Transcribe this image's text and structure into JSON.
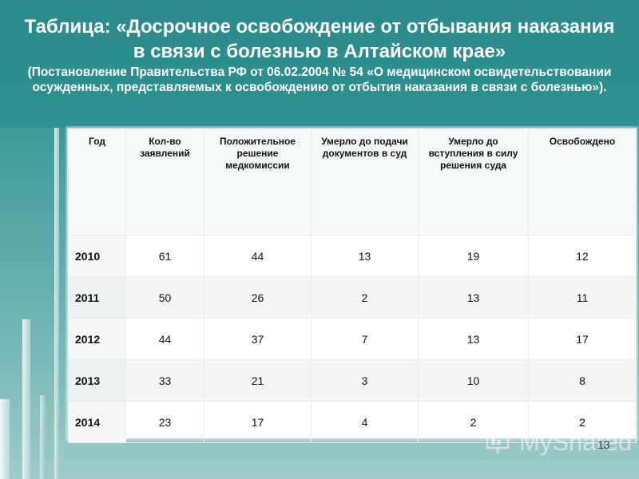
{
  "slide": {
    "title_main": "Таблица: «Досрочное освобождение от отбывания наказания в связи с болезнью в Алтайском крае»",
    "title_sub": "(Постановление Правительства РФ от 06.02.2004 № 54 «О медицинском освидетельствовании осужденных, представляемых к освобождению от отбытия наказания в связи с болезнью»).",
    "page_number": "13",
    "watermark": "MyShared"
  },
  "table": {
    "headers": [
      "Год",
      "Кол-во заявлений",
      "Положительное решение медкомиссии",
      "Умерло до подачи документов в суд",
      "Умерло до вступления в силу решения суда",
      "Освобождено"
    ],
    "rows": [
      [
        "2010",
        "61",
        "44",
        "13",
        "19",
        "12"
      ],
      [
        "2011",
        "50",
        "26",
        "2",
        "13",
        "11"
      ],
      [
        "2012",
        "44",
        "37",
        "7",
        "13",
        "17"
      ],
      [
        "2013",
        "33",
        "21",
        "3",
        "10",
        "8"
      ],
      [
        "2014",
        "23",
        "17",
        "4",
        "2",
        "2"
      ]
    ]
  }
}
